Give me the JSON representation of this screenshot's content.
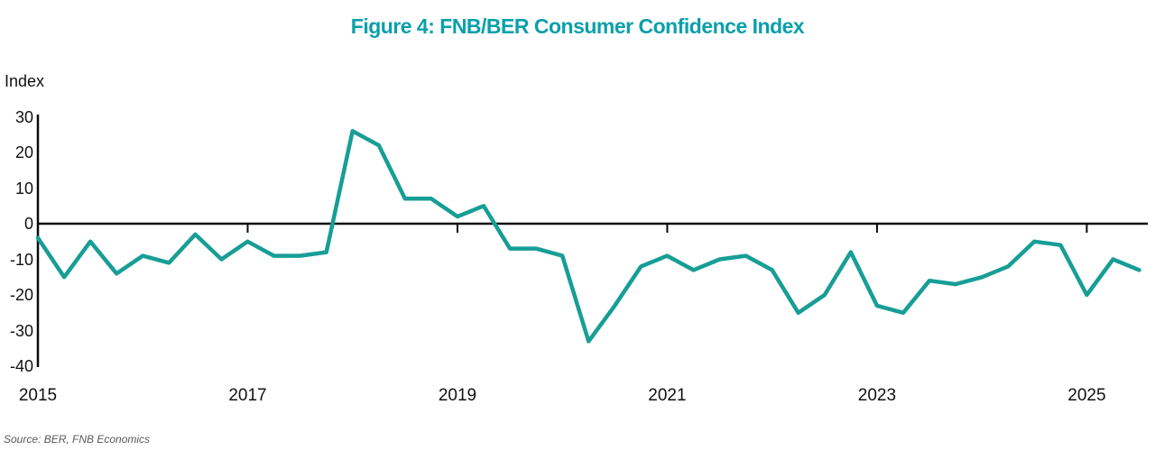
{
  "page": {
    "source_note": "Source: BER, FNB Economics"
  },
  "chart_data": {
    "type": "line",
    "title": "Figure 4: FNB/BER Consumer Confidence Index",
    "ylabel": "Index",
    "xlabel": "",
    "frequency": "quarterly",
    "start_period": "2015Q1",
    "end_period": "2025Q3",
    "series": [
      {
        "name": "FNB/BER Consumer Confidence Index",
        "values": [
          -4,
          -15,
          -5,
          -14,
          -9,
          -11,
          -3,
          -10,
          -5,
          -9,
          -9,
          -8,
          26,
          22,
          7,
          7,
          2,
          5,
          -7,
          -7,
          -9,
          -33,
          -23,
          -12,
          -9,
          -13,
          -10,
          -9,
          -13,
          -25,
          -20,
          -8,
          -23,
          -25,
          -16,
          -17,
          -15,
          -12,
          -5,
          -6,
          -20,
          -10,
          -13
        ]
      }
    ],
    "x_tick_years": [
      2015,
      2017,
      2019,
      2021,
      2023,
      2025
    ],
    "y_ticks": [
      30,
      20,
      10,
      0,
      -10,
      -20,
      -30,
      -40
    ],
    "ylim": [
      -40,
      30
    ],
    "grid": false,
    "legend": false,
    "zero_baseline": true,
    "colors": {
      "line": "#179e96",
      "axis": "#0a0a0a",
      "title": "#0aa0aa",
      "tick_text": "#111111",
      "source_text": "#595959"
    }
  }
}
